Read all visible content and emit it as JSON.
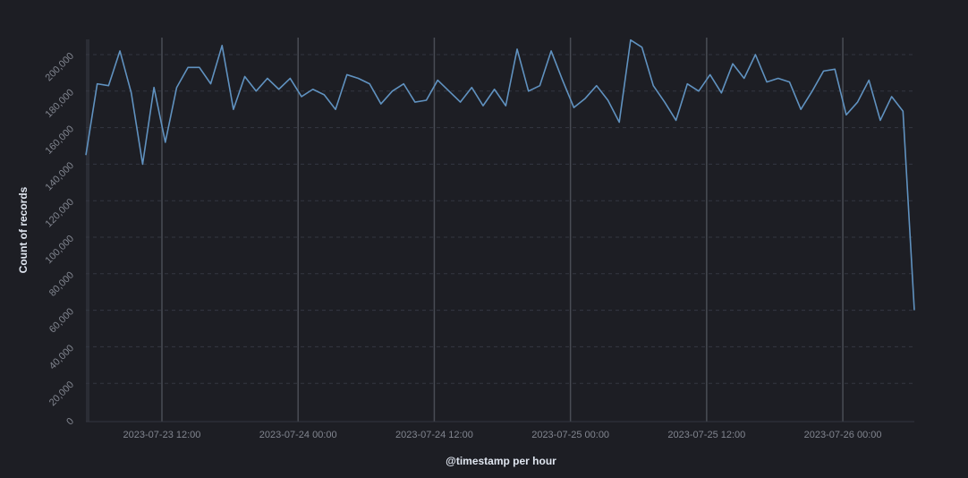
{
  "chart_data": {
    "type": "line",
    "xlabel": "@timestamp per hour",
    "ylabel": "Count of records",
    "ylim": [
      0,
      200000
    ],
    "yticks": [
      0,
      20000,
      40000,
      60000,
      80000,
      100000,
      120000,
      140000,
      160000,
      180000,
      200000
    ],
    "ytick_labels": [
      "0",
      "20,000",
      "40,000",
      "60,000",
      "80,000",
      "100,000",
      "120,000",
      "140,000",
      "160,000",
      "180,000",
      "200,000"
    ],
    "xticks": [
      {
        "x": 6.7,
        "label": "2023-07-23 12:00"
      },
      {
        "x": 18.7,
        "label": "2023-07-24 00:00"
      },
      {
        "x": 30.7,
        "label": "2023-07-24 12:00"
      },
      {
        "x": 42.7,
        "label": "2023-07-25 00:00"
      },
      {
        "x": 54.7,
        "label": "2023-07-25 12:00"
      },
      {
        "x": 66.7,
        "label": "2023-07-26 00:00"
      }
    ],
    "grid": "horizontal dashed, vertical at labeled ticks",
    "line_color": "#6092c0",
    "series": [
      {
        "values": [
          145000,
          184000,
          183000,
          202000,
          179000,
          140000,
          182000,
          152000,
          182000,
          193000,
          193000,
          184000,
          205000,
          170000,
          188000,
          180000,
          187000,
          181000,
          187000,
          177000,
          181000,
          178000,
          170000,
          189000,
          187000,
          184000,
          173000,
          180000,
          184000,
          174000,
          175000,
          186000,
          180000,
          174000,
          182000,
          172000,
          181000,
          172000,
          203000,
          180000,
          183000,
          202000,
          186000,
          171000,
          176000,
          183000,
          175000,
          163000,
          208000,
          204000,
          183000,
          174000,
          164000,
          184000,
          180000,
          189000,
          179000,
          195000,
          187000,
          200000,
          185000,
          187000,
          185000,
          170000,
          180000,
          191000,
          192000,
          167000,
          174000,
          186000,
          164000,
          177000,
          169000,
          60000
        ]
      }
    ]
  }
}
